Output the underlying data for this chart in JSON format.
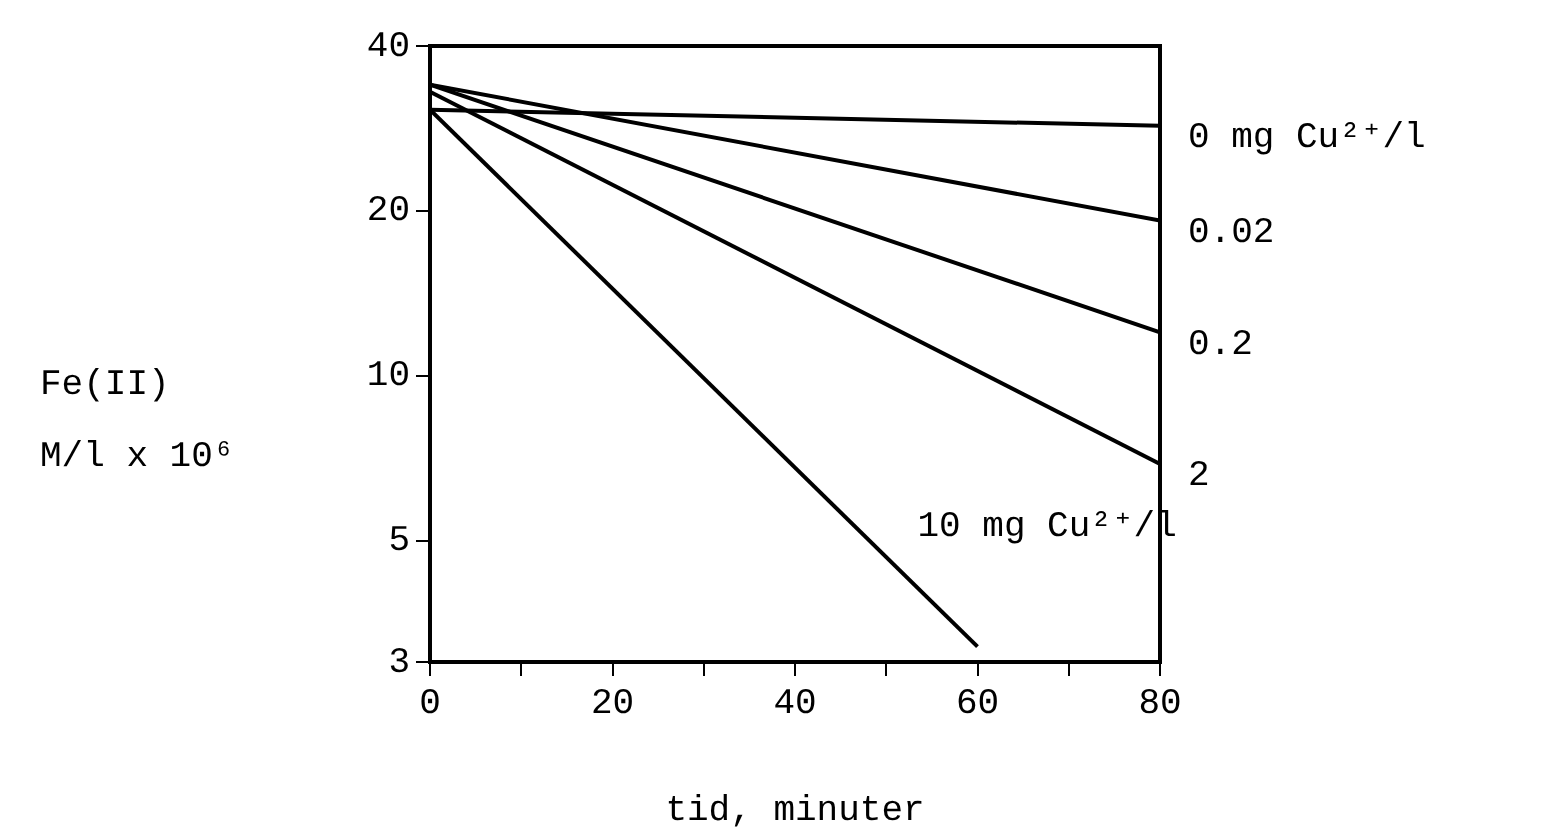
{
  "chart_data": {
    "type": "line",
    "xlabel": "tid, minuter",
    "ylabel": "Fe(II)\nM/l x 10⁶",
    "log": "y",
    "grid": false,
    "legend": false,
    "marker": "none",
    "line_style": "solid",
    "xlim": [
      0,
      80
    ],
    "xticks": [
      0,
      {
        "value": 10,
        "label": null
      },
      20,
      {
        "value": 30,
        "label": null
      },
      40,
      {
        "value": 50,
        "label": null
      },
      60,
      {
        "value": 70,
        "label": null
      },
      80
    ],
    "ylim": [
      3,
      40
    ],
    "yticks": [
      3,
      5,
      10,
      20,
      40
    ],
    "series": [
      {
        "name": "0 mg Cu²⁺/l",
        "color": "#000000",
        "x": [
          0,
          80
        ],
        "values": [
          30.6,
          28.6
        ]
      },
      {
        "name": "0.02",
        "color": "#000000",
        "x": [
          0,
          80
        ],
        "values": [
          34,
          19.2
        ]
      },
      {
        "name": "0.2",
        "color": "#000000",
        "x": [
          0,
          80
        ],
        "values": [
          34,
          12
        ]
      },
      {
        "name": "2",
        "color": "#000000",
        "x": [
          0,
          80
        ],
        "values": [
          33,
          6.9
        ]
      },
      {
        "name": "10 mg Cu²⁺/l",
        "color": "#000000",
        "x": [
          0,
          60
        ],
        "values": [
          30.6,
          3.2
        ]
      }
    ]
  }
}
